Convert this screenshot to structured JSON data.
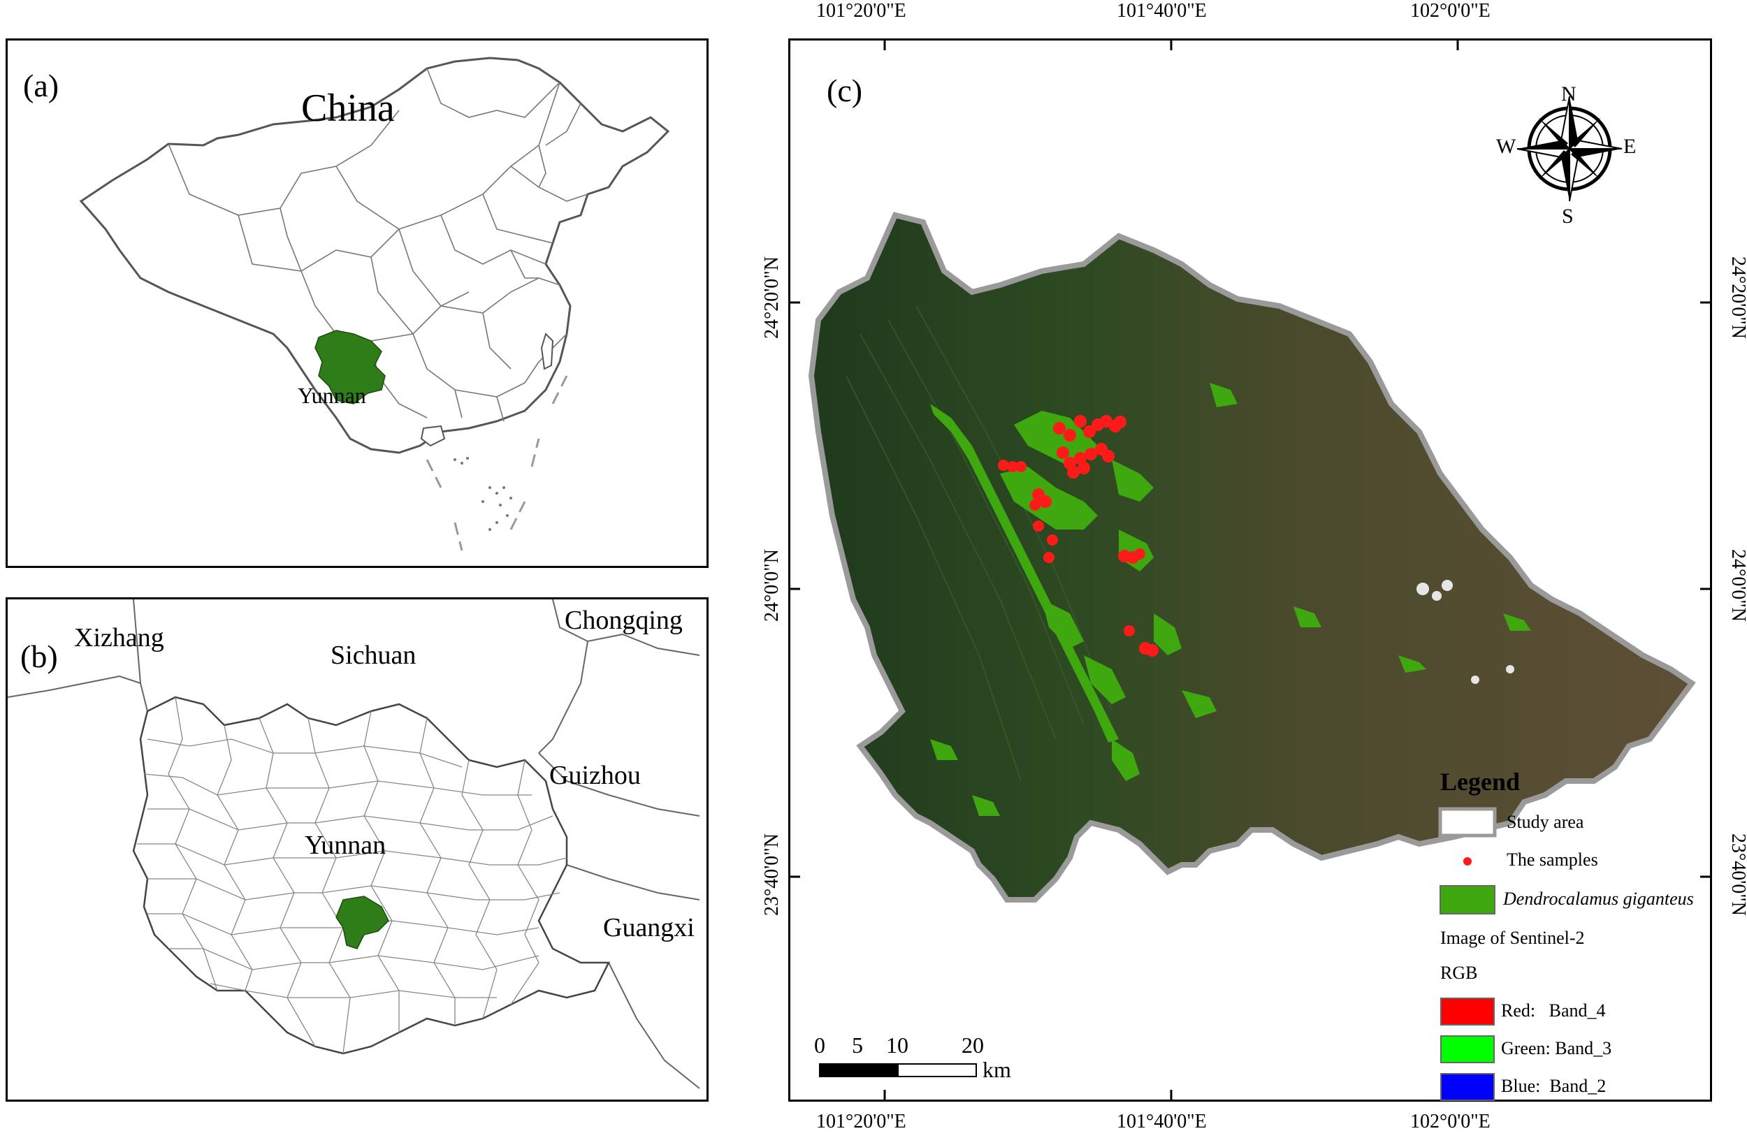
{
  "panel_a": {
    "tag": "(a)",
    "country_label": "China",
    "province_label": "Yunnan"
  },
  "panel_b": {
    "tag": "(b)",
    "labels": [
      "Xizhang",
      "Sichuan",
      "Chongqing",
      "Guizhou",
      "Yunnan",
      "Guangxi"
    ]
  },
  "panel_c": {
    "tag": "(c)",
    "lon_ticks": [
      "101°20'0\"E",
      "101°40'0\"E",
      "102°0'0\"E"
    ],
    "lat_ticks": [
      "24°20'0\"N",
      "24°0'0\"N",
      "23°40'0\"N"
    ],
    "compass": {
      "n": "N",
      "s": "S",
      "e": "E",
      "w": "W"
    },
    "scale_bar": {
      "ticks": [
        "0",
        "5",
        "10",
        "20"
      ],
      "unit": "km"
    },
    "legend": {
      "title": "Legend",
      "study_area": "Study area",
      "samples": "The samples",
      "species": "Dendrocalamus giganteus",
      "image_source": "Image of Sentinel-2",
      "rgb_heading": "RGB",
      "bands": [
        {
          "label": "Red:   Band_4",
          "color": "#ff0000"
        },
        {
          "label": "Green: Band_3",
          "color": "#00ff00"
        },
        {
          "label": "Blue:  Band_2",
          "color": "#0000ff"
        }
      ]
    }
  },
  "colors": {
    "yunnan_fill": "#2e7d18",
    "bamboo_green": "#3fa80f",
    "sample_red": "#ff1a1a",
    "study_border": "#9a9a9a"
  }
}
